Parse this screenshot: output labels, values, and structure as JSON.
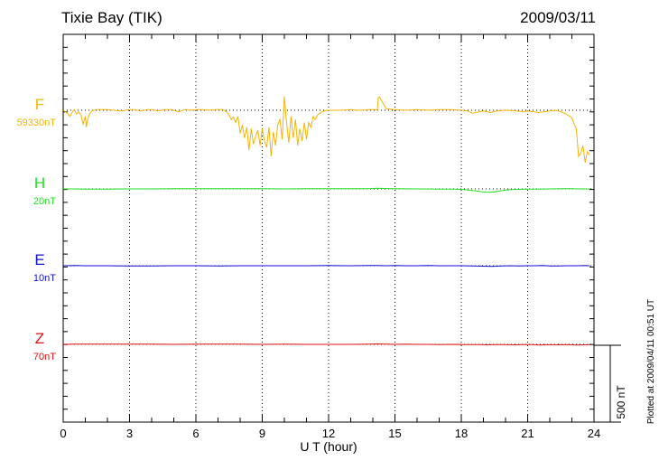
{
  "title": "Tixie Bay (TIK)",
  "date": "2009/03/11",
  "plotted_at": "Plotted at 2009/04/11 00:51 UT",
  "scale_bar_label": "500 nT",
  "chart_data": {
    "type": "line",
    "title": "Tixie Bay (TIK)",
    "xlabel": "U T (hour)",
    "ylabel": "",
    "xlim": [
      0,
      24
    ],
    "x_ticks": [
      "0",
      "3",
      "6",
      "9",
      "12",
      "15",
      "18",
      "21",
      "24"
    ],
    "grid": true,
    "series": [
      {
        "name": "F",
        "baseline_label": "59330nT",
        "color": "#f5b400",
        "x": [
          0,
          0.1,
          0.2,
          0.3,
          0.4,
          0.5,
          0.6,
          0.7,
          0.8,
          0.9,
          1.0,
          1.05,
          1.1,
          1.2,
          1.3,
          1.5,
          1.7,
          2.0,
          2.3,
          2.6,
          3.0,
          3.2,
          3.5,
          3.8,
          4.0,
          4.3,
          4.6,
          4.9,
          5.2,
          5.5,
          5.8,
          6.0,
          6.3,
          6.6,
          6.9,
          7.2,
          7.4,
          7.5,
          7.6,
          7.7,
          7.8,
          7.9,
          8.0,
          8.1,
          8.2,
          8.3,
          8.4,
          8.5,
          8.6,
          8.7,
          8.8,
          8.9,
          9.0,
          9.1,
          9.2,
          9.3,
          9.4,
          9.5,
          9.6,
          9.7,
          9.8,
          9.9,
          10.0,
          10.1,
          10.2,
          10.3,
          10.4,
          10.5,
          10.6,
          10.7,
          10.8,
          10.9,
          11.0,
          11.1,
          11.2,
          11.3,
          11.4,
          11.5,
          11.6,
          11.7,
          11.8,
          11.9,
          12.0,
          12.5,
          13.0,
          13.3,
          13.5,
          13.8,
          14.1,
          14.2,
          14.25,
          14.3,
          14.6,
          15.0,
          15.5,
          16.0,
          16.5,
          17.0,
          17.5,
          18.0,
          18.3,
          18.5,
          18.8,
          19.0,
          19.3,
          19.6,
          20.0,
          20.5,
          20.8,
          21.0,
          21.5,
          22.0,
          22.3,
          22.6,
          22.8,
          23.0,
          23.1,
          23.2,
          23.3,
          23.4,
          23.5,
          23.6,
          23.7,
          23.8
        ],
        "y": [
          0,
          -10,
          -20,
          -40,
          -15,
          5,
          -25,
          -10,
          -30,
          -90,
          -40,
          -110,
          -60,
          -20,
          -5,
          5,
          5,
          5,
          0,
          -5,
          5,
          5,
          -5,
          5,
          5,
          -5,
          5,
          5,
          -10,
          5,
          0,
          5,
          5,
          0,
          5,
          5,
          -10,
          -30,
          -60,
          -45,
          -80,
          -40,
          -150,
          -95,
          -180,
          -110,
          -260,
          -120,
          -220,
          -170,
          -130,
          -230,
          -120,
          -200,
          -240,
          -110,
          -300,
          -140,
          -230,
          -95,
          -60,
          -190,
          90,
          -80,
          -210,
          -40,
          -180,
          -60,
          -230,
          -120,
          -200,
          -80,
          -190,
          -80,
          -110,
          -40,
          -60,
          -30,
          -20,
          -10,
          -5,
          0,
          0,
          0,
          5,
          0,
          0,
          5,
          5,
          0,
          85,
          85,
          10,
          5,
          0,
          5,
          0,
          5,
          5,
          0,
          -5,
          -20,
          -10,
          -5,
          -15,
          -5,
          0,
          -5,
          -10,
          -5,
          -15,
          -5,
          0,
          -15,
          -30,
          -50,
          -90,
          -120,
          -300,
          -280,
          -230,
          -340,
          -270,
          -290
        ]
      },
      {
        "name": "H",
        "baseline_label": "20nT",
        "color": "#1fe01f",
        "x": [
          0,
          0.5,
          1.0,
          1.5,
          2.0,
          3.0,
          4.0,
          5.0,
          6.0,
          7.0,
          7.5,
          8.0,
          8.5,
          9.0,
          10.0,
          11.0,
          12.0,
          13.0,
          13.8,
          14.2,
          14.5,
          15.0,
          16.0,
          17.0,
          17.5,
          18.0,
          18.3,
          18.6,
          18.9,
          19.2,
          19.5,
          19.8,
          20.2,
          20.6,
          21.0,
          21.5,
          22.0,
          22.5,
          23.0,
          23.5,
          23.8
        ],
        "y": [
          0,
          0,
          -2,
          -1,
          -1,
          0,
          0,
          1,
          1,
          2,
          1,
          2,
          1,
          2,
          0,
          1,
          2,
          2,
          2,
          5,
          3,
          1,
          0,
          -1,
          -1,
          -3,
          -7,
          -12,
          -18,
          -22,
          -20,
          -12,
          -5,
          -3,
          -2,
          -1,
          0,
          1,
          1,
          0,
          0
        ]
      },
      {
        "name": "E",
        "baseline_label": "10nT",
        "color": "#1010d0",
        "x": [
          0,
          0.5,
          1.0,
          2.0,
          3.0,
          4.0,
          5.0,
          6.0,
          7.0,
          8.0,
          9.0,
          10.0,
          11.0,
          12.0,
          13.0,
          13.8,
          14.2,
          14.6,
          15.0,
          15.5,
          16.0,
          16.5,
          17.0,
          17.5,
          18.0,
          18.5,
          19.0,
          19.4,
          19.8,
          20.2,
          20.6,
          21.0,
          21.3,
          21.7,
          22.0,
          22.4,
          22.8,
          23.2,
          23.6,
          23.8
        ],
        "y": [
          0,
          1,
          0,
          0,
          -1,
          -1,
          0,
          0,
          -1,
          0,
          0,
          0,
          0,
          1,
          0,
          1,
          2,
          0,
          1,
          0,
          0,
          1,
          0,
          0,
          0,
          -1,
          -3,
          -4,
          -1,
          0,
          -2,
          0,
          0,
          1,
          -2,
          -1,
          0,
          0,
          1,
          0
        ]
      },
      {
        "name": "Z",
        "baseline_label": "70nT",
        "color": "#e01010",
        "x": [
          0,
          0.5,
          1.0,
          2.0,
          3.0,
          4.0,
          5.0,
          6.0,
          7.0,
          8.0,
          9.0,
          10.0,
          11.0,
          12.0,
          13.0,
          13.8,
          14.2,
          14.6,
          15.0,
          15.5,
          16.0,
          16.5,
          17.0,
          17.5,
          18.0,
          18.4,
          18.8,
          19.2,
          19.6,
          20.0,
          20.4,
          20.8,
          21.2,
          21.6,
          22.0,
          22.4,
          22.8,
          23.2,
          23.6,
          23.8
        ],
        "y": [
          0,
          1,
          1,
          1,
          1,
          1,
          0,
          1,
          1,
          1,
          0,
          1,
          0,
          0,
          0,
          1,
          3,
          1,
          0,
          1,
          0,
          0,
          -1,
          0,
          -1,
          -1,
          -2,
          -3,
          -2,
          -1,
          -3,
          -2,
          -2,
          -4,
          -1,
          -3,
          -2,
          -4,
          -3,
          -2
        ]
      }
    ]
  }
}
